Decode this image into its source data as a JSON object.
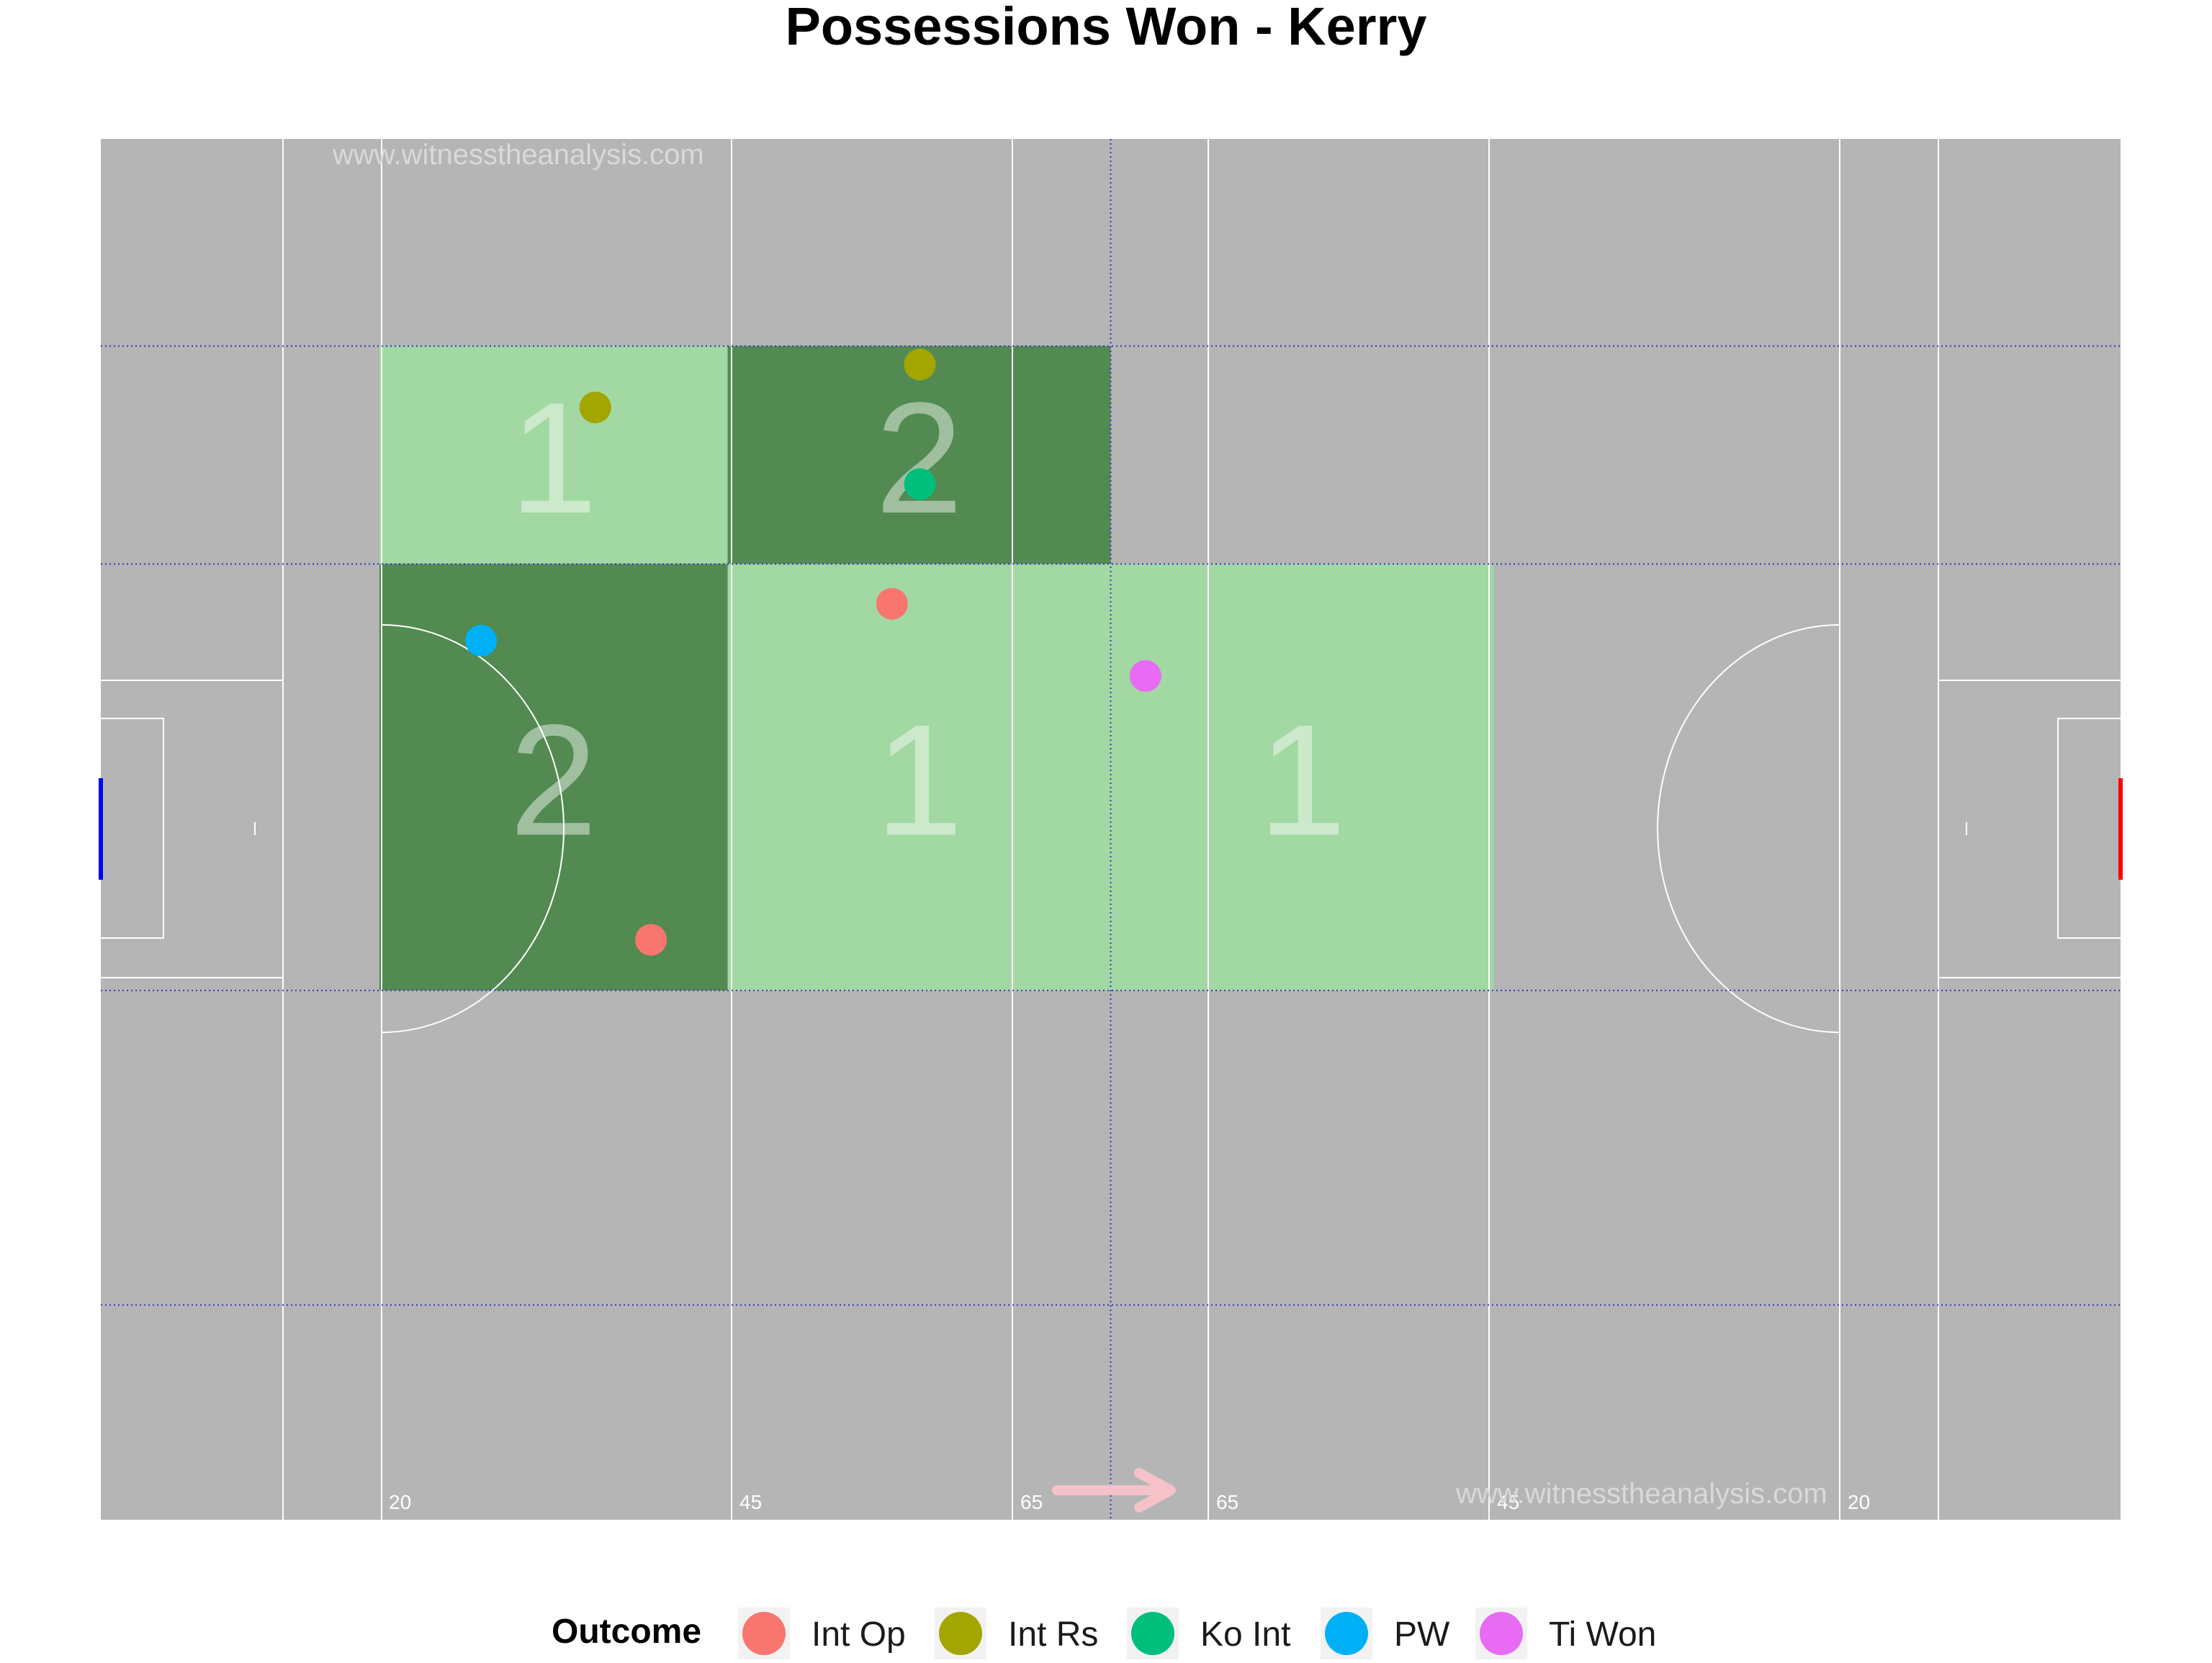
{
  "title": "Possessions Won - Kerry",
  "watermark": "www.witnesstheanalysis.com",
  "pitch": {
    "background": "#b5b5b5",
    "line_color": "#ffffff",
    "zone_line_color": "#3333cc",
    "distance_labels": [
      "20",
      "45",
      "65",
      "65",
      "45",
      "20"
    ],
    "left_goal_color": "#0000ff",
    "right_goal_color": "#ff0000",
    "direction_arrow_color": "#f4c2c8"
  },
  "chart_data": {
    "type": "scatter",
    "title": "Possessions Won - Kerry",
    "legend_title": "Outcome",
    "legend_position": "bottom",
    "x_range": [
      0,
      145
    ],
    "y_range": [
      0,
      90
    ],
    "x_zone_bounds": [
      20,
      45,
      72.5,
      100
    ],
    "y_zone_bounds": [
      14,
      34.5,
      62.3,
      76.5
    ],
    "heat_colors": {
      "1": "#a2d8a2",
      "2": "#528a51"
    },
    "zone_counts": [
      {
        "x0": 20,
        "x1": 45,
        "y0": 62.3,
        "y1": 76.5,
        "count": 1
      },
      {
        "x0": 45,
        "x1": 72.5,
        "y0": 62.3,
        "y1": 76.5,
        "count": 2
      },
      {
        "x0": 20,
        "x1": 45,
        "y0": 34.5,
        "y1": 62.3,
        "count": 2
      },
      {
        "x0": 45,
        "x1": 72.5,
        "y0": 34.5,
        "y1": 62.3,
        "count": 1
      },
      {
        "x0": 72.5,
        "x1": 100,
        "y0": 34.5,
        "y1": 62.3,
        "count": 1
      }
    ],
    "categories": [
      {
        "name": "Int Op",
        "color": "#f8766d"
      },
      {
        "name": "Int Rs",
        "color": "#a3a500"
      },
      {
        "name": "Ko Int",
        "color": "#00bf7d"
      },
      {
        "name": "PW",
        "color": "#00b0f6"
      },
      {
        "name": "Ti Won",
        "color": "#e76bf3"
      }
    ],
    "points": [
      {
        "outcome": "Int Rs",
        "x": 35.5,
        "y": 72.5
      },
      {
        "outcome": "Int Rs",
        "x": 58.8,
        "y": 75.3
      },
      {
        "outcome": "Ko Int",
        "x": 58.8,
        "y": 67.5
      },
      {
        "outcome": "PW",
        "x": 27.3,
        "y": 57.3
      },
      {
        "outcome": "Int Op",
        "x": 56.8,
        "y": 59.7
      },
      {
        "outcome": "Int Op",
        "x": 39.5,
        "y": 37.8
      },
      {
        "outcome": "Ti Won",
        "x": 75.0,
        "y": 55.0
      }
    ]
  }
}
